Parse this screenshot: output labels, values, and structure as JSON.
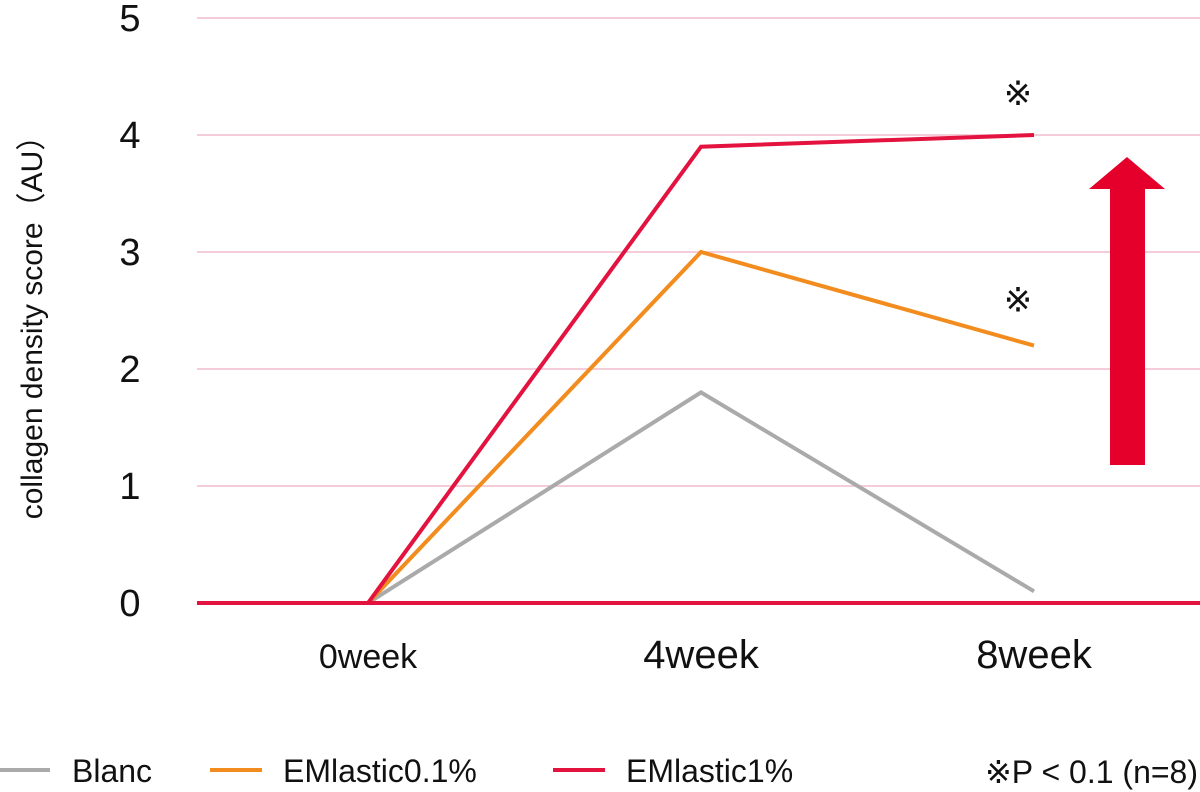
{
  "chart_data": {
    "type": "line",
    "ylabel": "collagen density score（AU）",
    "xlabel": "",
    "categories": [
      "0week",
      "4week",
      "8week"
    ],
    "ylim": [
      0,
      5
    ],
    "yticks": [
      0,
      1,
      2,
      3,
      4,
      5
    ],
    "grid": true,
    "legend_position": "bottom",
    "series": [
      {
        "name": "Blanc",
        "values": [
          0,
          1.8,
          0.1
        ],
        "color": "#aaaaaa"
      },
      {
        "name": "EMlastic0.1%",
        "values": [
          0,
          3.0,
          2.2
        ],
        "color": "#f28c1e"
      },
      {
        "name": "EMlastic1%",
        "values": [
          0,
          3.9,
          4.0
        ],
        "color": "#e3123f"
      }
    ],
    "annotations": [
      {
        "text": "※",
        "series": "EMlastic1%",
        "category": "8week"
      },
      {
        "text": "※",
        "series": "EMlastic0.1%",
        "category": "8week"
      }
    ],
    "significance_note": "※P < 0.1 (n=8)",
    "arrow_direction": "up",
    "colors": {
      "grid": "#f5cdd8",
      "baseline": "#e3123f",
      "arrow": "#e4002b",
      "text": "#111111"
    }
  }
}
